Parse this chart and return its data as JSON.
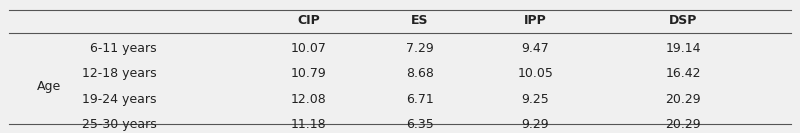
{
  "row_header_label": "Age",
  "col_headers": [
    "",
    "",
    "CIP",
    "ES",
    "IPP",
    "DSP"
  ],
  "sub_col_headers": [
    "CIP",
    "ES",
    "IPP",
    "DSP"
  ],
  "age_groups": [
    "6-11 years",
    "12-18 years",
    "19-24 years",
    "25-30 years"
  ],
  "values": [
    [
      10.07,
      7.29,
      9.47,
      19.14
    ],
    [
      10.79,
      8.68,
      10.05,
      16.42
    ],
    [
      12.08,
      6.71,
      9.25,
      20.29
    ],
    [
      11.18,
      6.35,
      9.29,
      20.29
    ]
  ],
  "bg_color": "#f0f0f0",
  "header_line_color": "#555555",
  "text_color": "#222222",
  "font_size": 9,
  "header_font_size": 9
}
